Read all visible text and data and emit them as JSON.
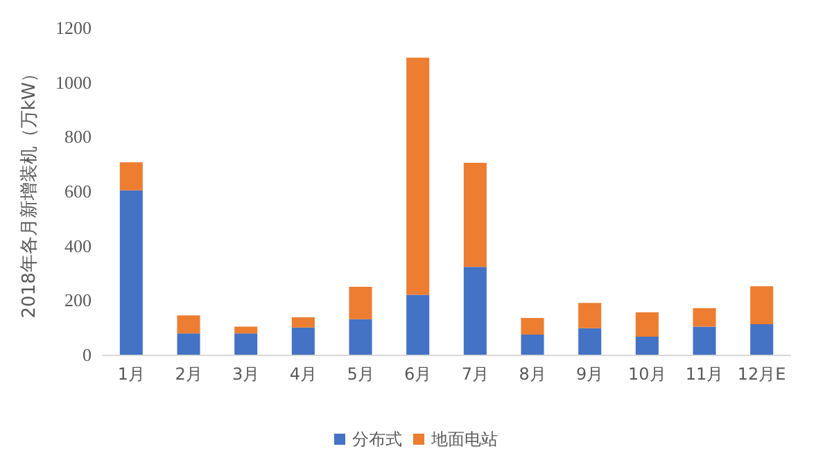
{
  "chart_data": {
    "type": "bar",
    "ylabel": "2018年各月新增装机（万kW）",
    "categories": [
      "1月",
      "2月",
      "3月",
      "4月",
      "5月",
      "6月",
      "7月",
      "8月",
      "9月",
      "10月",
      "11月",
      "12月E"
    ],
    "stacked": true,
    "series": [
      {
        "name": "分布式",
        "color": "#4472c4",
        "values": [
          603,
          78,
          78,
          100,
          130,
          220,
          322,
          74,
          97,
          66,
          103,
          112
        ]
      },
      {
        "name": "地面电站",
        "color": "#ed7d31",
        "values": [
          103,
          66,
          25,
          37,
          119,
          870,
          382,
          61,
          93,
          90,
          68,
          139
        ]
      }
    ],
    "ylim": [
      0,
      1200
    ],
    "yticks": [
      0,
      200,
      400,
      600,
      800,
      1000,
      1200
    ],
    "grid": false,
    "legend": "bottom"
  }
}
